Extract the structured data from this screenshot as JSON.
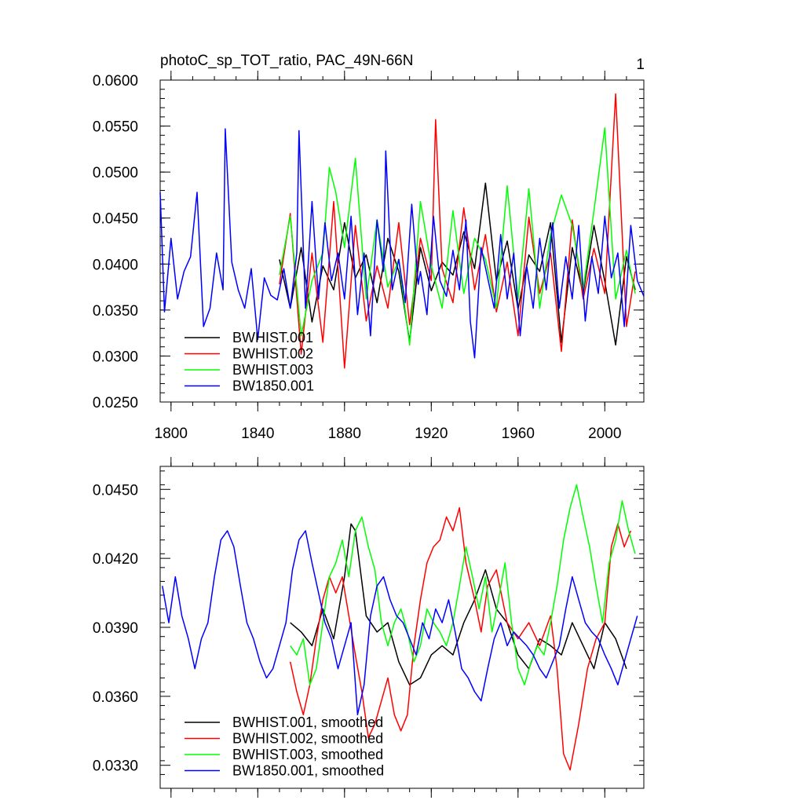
{
  "chart_data": [
    {
      "type": "line",
      "panel": "top",
      "title": "photoC_sp_TOT_ratio, PAC_49N-66N",
      "corner_label": "1",
      "xlim": [
        1795,
        2018
      ],
      "ylim": [
        0.025,
        0.06
      ],
      "yticks": [
        0.025,
        0.03,
        0.035,
        0.04,
        0.045,
        0.05,
        0.055,
        0.06
      ],
      "ytick_labels": [
        "0.0250",
        "0.0300",
        "0.0350",
        "0.0400",
        "0.0450",
        "0.0500",
        "0.0550",
        "0.0600"
      ],
      "xticks": [
        1800,
        1840,
        1880,
        1920,
        1960,
        2000
      ],
      "xtick_labels": [
        "1800",
        "1840",
        "1880",
        "1920",
        "1960",
        "2000"
      ],
      "legend_position": "bottom-left",
      "grid": false,
      "series": [
        {
          "name": "BWHIST.001",
          "color": "#000000",
          "x": [
            1850,
            1855,
            1860,
            1865,
            1870,
            1875,
            1880,
            1885,
            1890,
            1895,
            1900,
            1905,
            1910,
            1915,
            1920,
            1925,
            1930,
            1935,
            1940,
            1945,
            1950,
            1955,
            1960,
            1965,
            1970,
            1975,
            1980,
            1985,
            1990,
            1995,
            2000,
            2005,
            2010,
            2014
          ],
          "y": [
            0.0405,
            0.0352,
            0.0418,
            0.0337,
            0.0398,
            0.0372,
            0.0445,
            0.0385,
            0.041,
            0.0358,
            0.0428,
            0.0392,
            0.0316,
            0.0418,
            0.0371,
            0.0402,
            0.0388,
            0.0435,
            0.0395,
            0.0488,
            0.0382,
            0.0425,
            0.0351,
            0.041,
            0.0392,
            0.0445,
            0.0315,
            0.0418,
            0.0368,
            0.0442,
            0.0381,
            0.0312,
            0.0408,
            0.0372
          ]
        },
        {
          "name": "BWHIST.002",
          "color": "#ff0000",
          "x": [
            1850,
            1855,
            1860,
            1865,
            1870,
            1875,
            1880,
            1885,
            1890,
            1895,
            1900,
            1905,
            1910,
            1915,
            1920,
            1922,
            1925,
            1930,
            1935,
            1940,
            1945,
            1950,
            1955,
            1960,
            1965,
            1970,
            1975,
            1980,
            1985,
            1990,
            1995,
            2000,
            2005,
            2010,
            2014
          ],
          "y": [
            0.0378,
            0.0455,
            0.0302,
            0.0412,
            0.0315,
            0.0468,
            0.0287,
            0.0442,
            0.0338,
            0.0398,
            0.0352,
            0.0445,
            0.0334,
            0.0428,
            0.0382,
            0.0557,
            0.0395,
            0.0358,
            0.0461,
            0.0372,
            0.0432,
            0.0348,
            0.0402,
            0.0322,
            0.0451,
            0.0368,
            0.0412,
            0.0305,
            0.0448,
            0.0362,
            0.0417,
            0.0368,
            0.0585,
            0.0332,
            0.0392
          ]
        },
        {
          "name": "BWHIST.003",
          "color": "#00ff00",
          "x": [
            1850,
            1855,
            1860,
            1865,
            1870,
            1873,
            1876,
            1880,
            1885,
            1890,
            1895,
            1900,
            1905,
            1910,
            1915,
            1920,
            1925,
            1930,
            1935,
            1940,
            1945,
            1950,
            1955,
            1960,
            1965,
            1970,
            1975,
            1980,
            1985,
            1990,
            1995,
            2000,
            2005,
            2010,
            2014
          ],
          "y": [
            0.0388,
            0.0452,
            0.0322,
            0.0382,
            0.0412,
            0.0505,
            0.0478,
            0.0418,
            0.0515,
            0.0362,
            0.0448,
            0.0375,
            0.0405,
            0.0312,
            0.0468,
            0.0398,
            0.0352,
            0.0458,
            0.0368,
            0.0428,
            0.0405,
            0.0352,
            0.0485,
            0.0362,
            0.0482,
            0.0352,
            0.0432,
            0.0475,
            0.0442,
            0.0372,
            0.0458,
            0.0548,
            0.0362,
            0.0415,
            0.0368
          ]
        },
        {
          "name": "BW1850.001",
          "color": "#0000ff",
          "x": [
            1795,
            1797,
            1800,
            1803,
            1806,
            1809,
            1812,
            1815,
            1818,
            1821,
            1824,
            1825,
            1828,
            1831,
            1834,
            1837,
            1840,
            1843,
            1846,
            1849,
            1852,
            1855,
            1858,
            1859,
            1862,
            1865,
            1868,
            1871,
            1874,
            1877,
            1880,
            1883,
            1886,
            1889,
            1892,
            1895,
            1898,
            1899,
            1902,
            1905,
            1908,
            1911,
            1914,
            1915,
            1918,
            1921,
            1924,
            1927,
            1930,
            1933,
            1936,
            1938,
            1940,
            1943,
            1946,
            1949,
            1952,
            1955,
            1958,
            1961,
            1964,
            1967,
            1970,
            1973,
            1976,
            1979,
            1982,
            1985,
            1988,
            1991,
            1994,
            1997,
            2000,
            2003,
            2006,
            2009,
            2012,
            2015,
            2018
          ],
          "y": [
            0.0478,
            0.0348,
            0.0428,
            0.0362,
            0.0392,
            0.0408,
            0.0478,
            0.0332,
            0.0352,
            0.0412,
            0.0372,
            0.0547,
            0.0402,
            0.0372,
            0.0352,
            0.0395,
            0.0318,
            0.0385,
            0.0366,
            0.0361,
            0.0395,
            0.0352,
            0.0412,
            0.0545,
            0.0352,
            0.0468,
            0.0362,
            0.0445,
            0.0382,
            0.0412,
            0.0362,
            0.0452,
            0.0345,
            0.0412,
            0.0322,
            0.0448,
            0.0392,
            0.0523,
            0.0372,
            0.0405,
            0.0358,
            0.0465,
            0.0378,
            0.0392,
            0.0345,
            0.0452,
            0.0382,
            0.0365,
            0.0415,
            0.0372,
            0.0448,
            0.0338,
            0.0298,
            0.0418,
            0.0385,
            0.0352,
            0.0432,
            0.0362,
            0.0412,
            0.0322,
            0.0398,
            0.0352,
            0.0428,
            0.0372,
            0.0445,
            0.0352,
            0.0408,
            0.0362,
            0.0442,
            0.0338,
            0.0408,
            0.0368,
            0.0452,
            0.0385,
            0.0412,
            0.0332,
            0.0442,
            0.0382,
            0.0365
          ]
        }
      ]
    },
    {
      "type": "line",
      "panel": "bottom",
      "xlim": [
        1795,
        2018
      ],
      "ylim": [
        0.032,
        0.046
      ],
      "yticks": [
        0.033,
        0.036,
        0.039,
        0.042,
        0.045
      ],
      "ytick_labels": [
        "0.0330",
        "0.0360",
        "0.0390",
        "0.0420",
        "0.0450"
      ],
      "xticks": [
        1800,
        1840,
        1880,
        1920,
        1960,
        2000
      ],
      "legend_position": "bottom-left",
      "grid": false,
      "series": [
        {
          "name": "BWHIST.001, smoothed",
          "color": "#000000",
          "x": [
            1855,
            1860,
            1865,
            1870,
            1875,
            1880,
            1883,
            1885,
            1890,
            1895,
            1900,
            1905,
            1910,
            1915,
            1920,
            1925,
            1930,
            1935,
            1940,
            1945,
            1950,
            1955,
            1960,
            1965,
            1970,
            1975,
            1980,
            1985,
            1990,
            1995,
            2000,
            2005,
            2010
          ],
          "y": [
            0.0392,
            0.0388,
            0.0382,
            0.0398,
            0.0385,
            0.0412,
            0.0435,
            0.0432,
            0.0395,
            0.0388,
            0.0392,
            0.0375,
            0.0365,
            0.0368,
            0.0378,
            0.0382,
            0.0378,
            0.0392,
            0.0402,
            0.0415,
            0.0398,
            0.0392,
            0.0378,
            0.0372,
            0.0385,
            0.0382,
            0.0378,
            0.0392,
            0.0382,
            0.0372,
            0.0392,
            0.0385,
            0.0372
          ]
        },
        {
          "name": "BWHIST.002, smoothed",
          "color": "#ff0000",
          "x": [
            1855,
            1858,
            1861,
            1864,
            1867,
            1870,
            1873,
            1876,
            1879,
            1882,
            1885,
            1888,
            1891,
            1894,
            1897,
            1900,
            1903,
            1906,
            1909,
            1912,
            1915,
            1918,
            1921,
            1924,
            1927,
            1930,
            1933,
            1936,
            1940,
            1943,
            1946,
            1950,
            1955,
            1960,
            1965,
            1970,
            1975,
            1978,
            1981,
            1984,
            1988,
            1992,
            1996,
            2000,
            2003,
            2006,
            2009,
            2012
          ],
          "y": [
            0.0375,
            0.0362,
            0.0352,
            0.0365,
            0.0385,
            0.0402,
            0.0412,
            0.0405,
            0.0412,
            0.0395,
            0.0378,
            0.0362,
            0.0342,
            0.0348,
            0.0358,
            0.0368,
            0.0352,
            0.0345,
            0.0352,
            0.0382,
            0.0402,
            0.0418,
            0.0425,
            0.0428,
            0.0438,
            0.0432,
            0.0442,
            0.0418,
            0.0402,
            0.0388,
            0.0408,
            0.0415,
            0.0392,
            0.0385,
            0.0392,
            0.0382,
            0.0395,
            0.0372,
            0.0335,
            0.0328,
            0.0348,
            0.0372,
            0.0385,
            0.0392,
            0.0425,
            0.0435,
            0.0425,
            0.0432
          ]
        },
        {
          "name": "BWHIST.003, smoothed",
          "color": "#00ff00",
          "x": [
            1855,
            1858,
            1861,
            1864,
            1867,
            1870,
            1873,
            1876,
            1879,
            1882,
            1885,
            1888,
            1891,
            1894,
            1897,
            1900,
            1903,
            1906,
            1909,
            1912,
            1915,
            1918,
            1921,
            1924,
            1927,
            1930,
            1933,
            1936,
            1939,
            1942,
            1945,
            1948,
            1951,
            1954,
            1957,
            1960,
            1963,
            1966,
            1969,
            1972,
            1975,
            1978,
            1981,
            1984,
            1987,
            1990,
            1993,
            1996,
            1999,
            2002,
            2005,
            2008,
            2011,
            2014
          ],
          "y": [
            0.0382,
            0.0378,
            0.0385,
            0.0365,
            0.0372,
            0.0392,
            0.0412,
            0.0418,
            0.0428,
            0.0412,
            0.0432,
            0.0438,
            0.0425,
            0.0415,
            0.0392,
            0.0382,
            0.0392,
            0.0398,
            0.0388,
            0.0375,
            0.0382,
            0.0398,
            0.0392,
            0.0388,
            0.0382,
            0.0392,
            0.0408,
            0.0425,
            0.0412,
            0.0398,
            0.0412,
            0.0388,
            0.0402,
            0.0418,
            0.0392,
            0.0372,
            0.0365,
            0.0375,
            0.0382,
            0.0378,
            0.0392,
            0.0408,
            0.0428,
            0.0442,
            0.0452,
            0.0438,
            0.0425,
            0.0408,
            0.0392,
            0.0418,
            0.0428,
            0.0445,
            0.0432,
            0.0422
          ]
        },
        {
          "name": "BW1850.001, smoothed",
          "color": "#0000ff",
          "x": [
            1796,
            1799,
            1802,
            1805,
            1808,
            1811,
            1814,
            1817,
            1820,
            1823,
            1826,
            1829,
            1832,
            1835,
            1838,
            1841,
            1844,
            1847,
            1850,
            1853,
            1856,
            1859,
            1862,
            1865,
            1868,
            1871,
            1874,
            1877,
            1880,
            1883,
            1886,
            1889,
            1892,
            1895,
            1898,
            1901,
            1904,
            1907,
            1910,
            1913,
            1916,
            1919,
            1922,
            1925,
            1928,
            1931,
            1934,
            1937,
            1940,
            1943,
            1946,
            1949,
            1952,
            1955,
            1958,
            1961,
            1964,
            1967,
            1970,
            1973,
            1976,
            1979,
            1982,
            1985,
            1988,
            1991,
            1994,
            1997,
            2000,
            2003,
            2006,
            2009,
            2012,
            2015
          ],
          "y": [
            0.0408,
            0.0392,
            0.0412,
            0.0395,
            0.0385,
            0.0372,
            0.0385,
            0.0392,
            0.0412,
            0.0428,
            0.0432,
            0.0425,
            0.0408,
            0.0392,
            0.0385,
            0.0375,
            0.0368,
            0.0372,
            0.0382,
            0.0392,
            0.0415,
            0.0428,
            0.0432,
            0.0418,
            0.0405,
            0.0392,
            0.0385,
            0.0372,
            0.0382,
            0.0392,
            0.0352,
            0.0365,
            0.0395,
            0.0408,
            0.0412,
            0.0402,
            0.0395,
            0.0392,
            0.0385,
            0.0378,
            0.0392,
            0.0385,
            0.0398,
            0.0392,
            0.0402,
            0.0388,
            0.0372,
            0.0368,
            0.0362,
            0.0358,
            0.0372,
            0.0385,
            0.0392,
            0.0382,
            0.0388,
            0.0385,
            0.0382,
            0.0378,
            0.0372,
            0.0368,
            0.0375,
            0.0382,
            0.0398,
            0.0412,
            0.0402,
            0.0392,
            0.0388,
            0.0385,
            0.0378,
            0.0372,
            0.0365,
            0.0375,
            0.0385,
            0.0395
          ]
        }
      ]
    }
  ]
}
